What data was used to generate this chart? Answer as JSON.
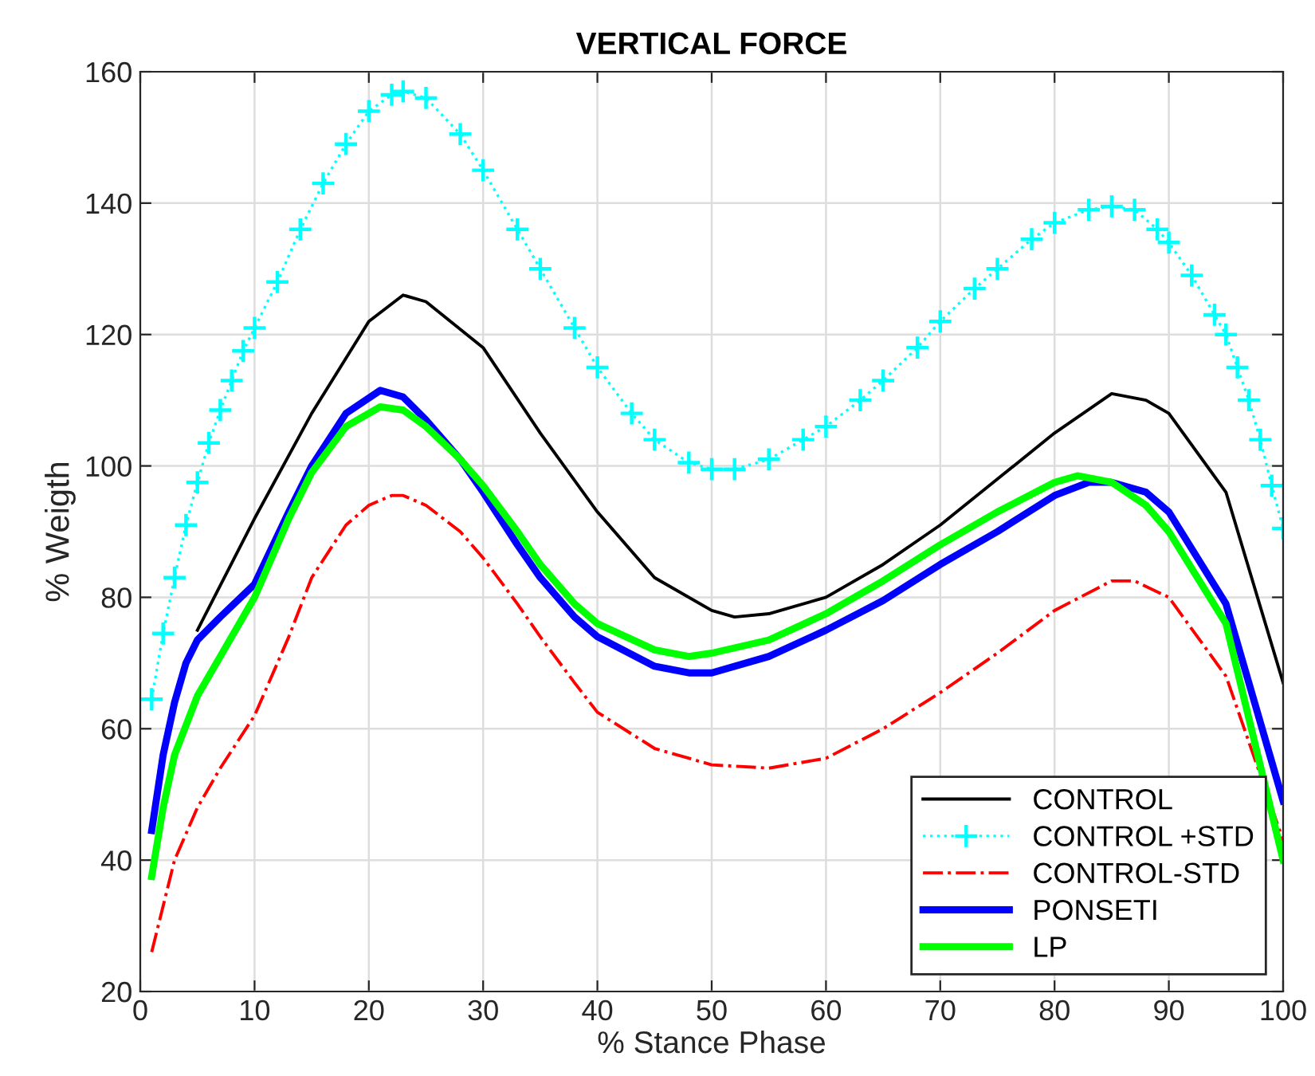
{
  "chart_data": {
    "type": "line",
    "title": "VERTICAL FORCE",
    "xlabel": "% Stance Phase",
    "ylabel": "% Weigth",
    "xlim": [
      0,
      100
    ],
    "xticks": [
      0,
      10,
      20,
      30,
      40,
      50,
      60,
      70,
      80,
      90,
      100
    ],
    "ylim": [
      20,
      160
    ],
    "yticks": [
      20,
      40,
      60,
      80,
      100,
      120,
      140,
      160
    ],
    "grid": true,
    "legend": "bottom right",
    "series": [
      {
        "name": "CONTROL",
        "color": "#000000",
        "line_style": "solid",
        "marker": "none",
        "x": [
          5,
          10,
          15,
          20,
          23,
          25,
          30,
          35,
          40,
          45,
          50,
          52,
          55,
          60,
          65,
          70,
          75,
          80,
          85,
          88,
          90,
          95,
          100
        ],
        "values": [
          75,
          92,
          108,
          122,
          126,
          125,
          118,
          105,
          93,
          83,
          78,
          77,
          77.5,
          80,
          85,
          91,
          98,
          105,
          111,
          110,
          108,
          96,
          67
        ]
      },
      {
        "name": "CONTROL +STD",
        "color": "#00ffff",
        "line_style": "dotted",
        "marker": "cross",
        "x": [
          1,
          2,
          3,
          4,
          5,
          6,
          7,
          8,
          9,
          10,
          12,
          14,
          16,
          18,
          20,
          22,
          23,
          25,
          28,
          30,
          33,
          35,
          38,
          40,
          43,
          45,
          48,
          50,
          52,
          55,
          58,
          60,
          63,
          65,
          68,
          70,
          73,
          75,
          78,
          80,
          83,
          85,
          87,
          89,
          90,
          92,
          94,
          95,
          96,
          97,
          98,
          99,
          100
        ],
        "values": [
          64.5,
          74.5,
          83,
          91,
          97.5,
          103.5,
          108.5,
          113,
          117.5,
          121,
          128,
          136,
          143,
          149,
          154,
          156.5,
          157,
          156,
          150.5,
          145,
          136,
          130,
          121,
          115,
          108,
          104,
          100.5,
          99.5,
          99.5,
          101,
          104,
          106,
          110,
          113,
          118,
          122,
          127,
          130,
          134.5,
          137,
          139,
          139.5,
          139,
          136,
          134,
          129,
          123,
          120,
          115,
          110,
          104,
          97,
          90.5
        ]
      },
      {
        "name": "CONTROL-STD",
        "color": "#ff0000",
        "line_style": "dashdot",
        "marker": "none",
        "x": [
          1,
          3,
          5,
          7,
          10,
          13,
          15,
          18,
          20,
          22,
          23,
          25,
          28,
          30,
          33,
          35,
          38,
          40,
          45,
          50,
          55,
          60,
          65,
          70,
          75,
          80,
          85,
          87,
          90,
          95,
          100
        ],
        "values": [
          26,
          40,
          48,
          54,
          62,
          74,
          83,
          91,
          94,
          95.5,
          95.5,
          94,
          90,
          86,
          79,
          74,
          67,
          62.5,
          57,
          54.5,
          54,
          55.5,
          60,
          65.5,
          71.5,
          78,
          82.5,
          82.5,
          80,
          68,
          43
        ]
      },
      {
        "name": "PONSETI",
        "color": "#0000ff",
        "line_style": "solid",
        "marker": "none",
        "x": [
          1,
          2,
          3,
          4,
          5,
          7,
          10,
          13,
          15,
          18,
          21,
          23,
          25,
          28,
          30,
          33,
          35,
          38,
          40,
          45,
          48,
          50,
          55,
          60,
          65,
          70,
          75,
          80,
          83,
          85,
          88,
          90,
          95,
          100
        ],
        "values": [
          44.5,
          56,
          64,
          70,
          73.5,
          77,
          82,
          93,
          100,
          108,
          111.5,
          110.5,
          107,
          101,
          96,
          88,
          83,
          77,
          74,
          69.5,
          68.5,
          68.5,
          71,
          75,
          79.5,
          85,
          90,
          95.5,
          97.5,
          97.5,
          96,
          93,
          79,
          49
        ]
      },
      {
        "name": "LP",
        "color": "#00ff00",
        "line_style": "solid",
        "marker": "none",
        "x": [
          1,
          2,
          3,
          5,
          7,
          10,
          13,
          15,
          18,
          21,
          23,
          25,
          28,
          30,
          33,
          35,
          38,
          40,
          45,
          48,
          50,
          55,
          60,
          65,
          70,
          75,
          80,
          82,
          85,
          88,
          90,
          95,
          100
        ],
        "values": [
          37.5,
          48,
          56,
          65,
          71,
          80,
          92,
          99,
          106,
          109,
          108.5,
          106,
          101,
          97,
          90,
          85,
          79,
          76,
          72,
          71,
          71.5,
          73.5,
          77.5,
          82.5,
          88,
          93,
          97.5,
          98.5,
          97.5,
          94,
          90,
          76,
          40
        ]
      }
    ]
  }
}
